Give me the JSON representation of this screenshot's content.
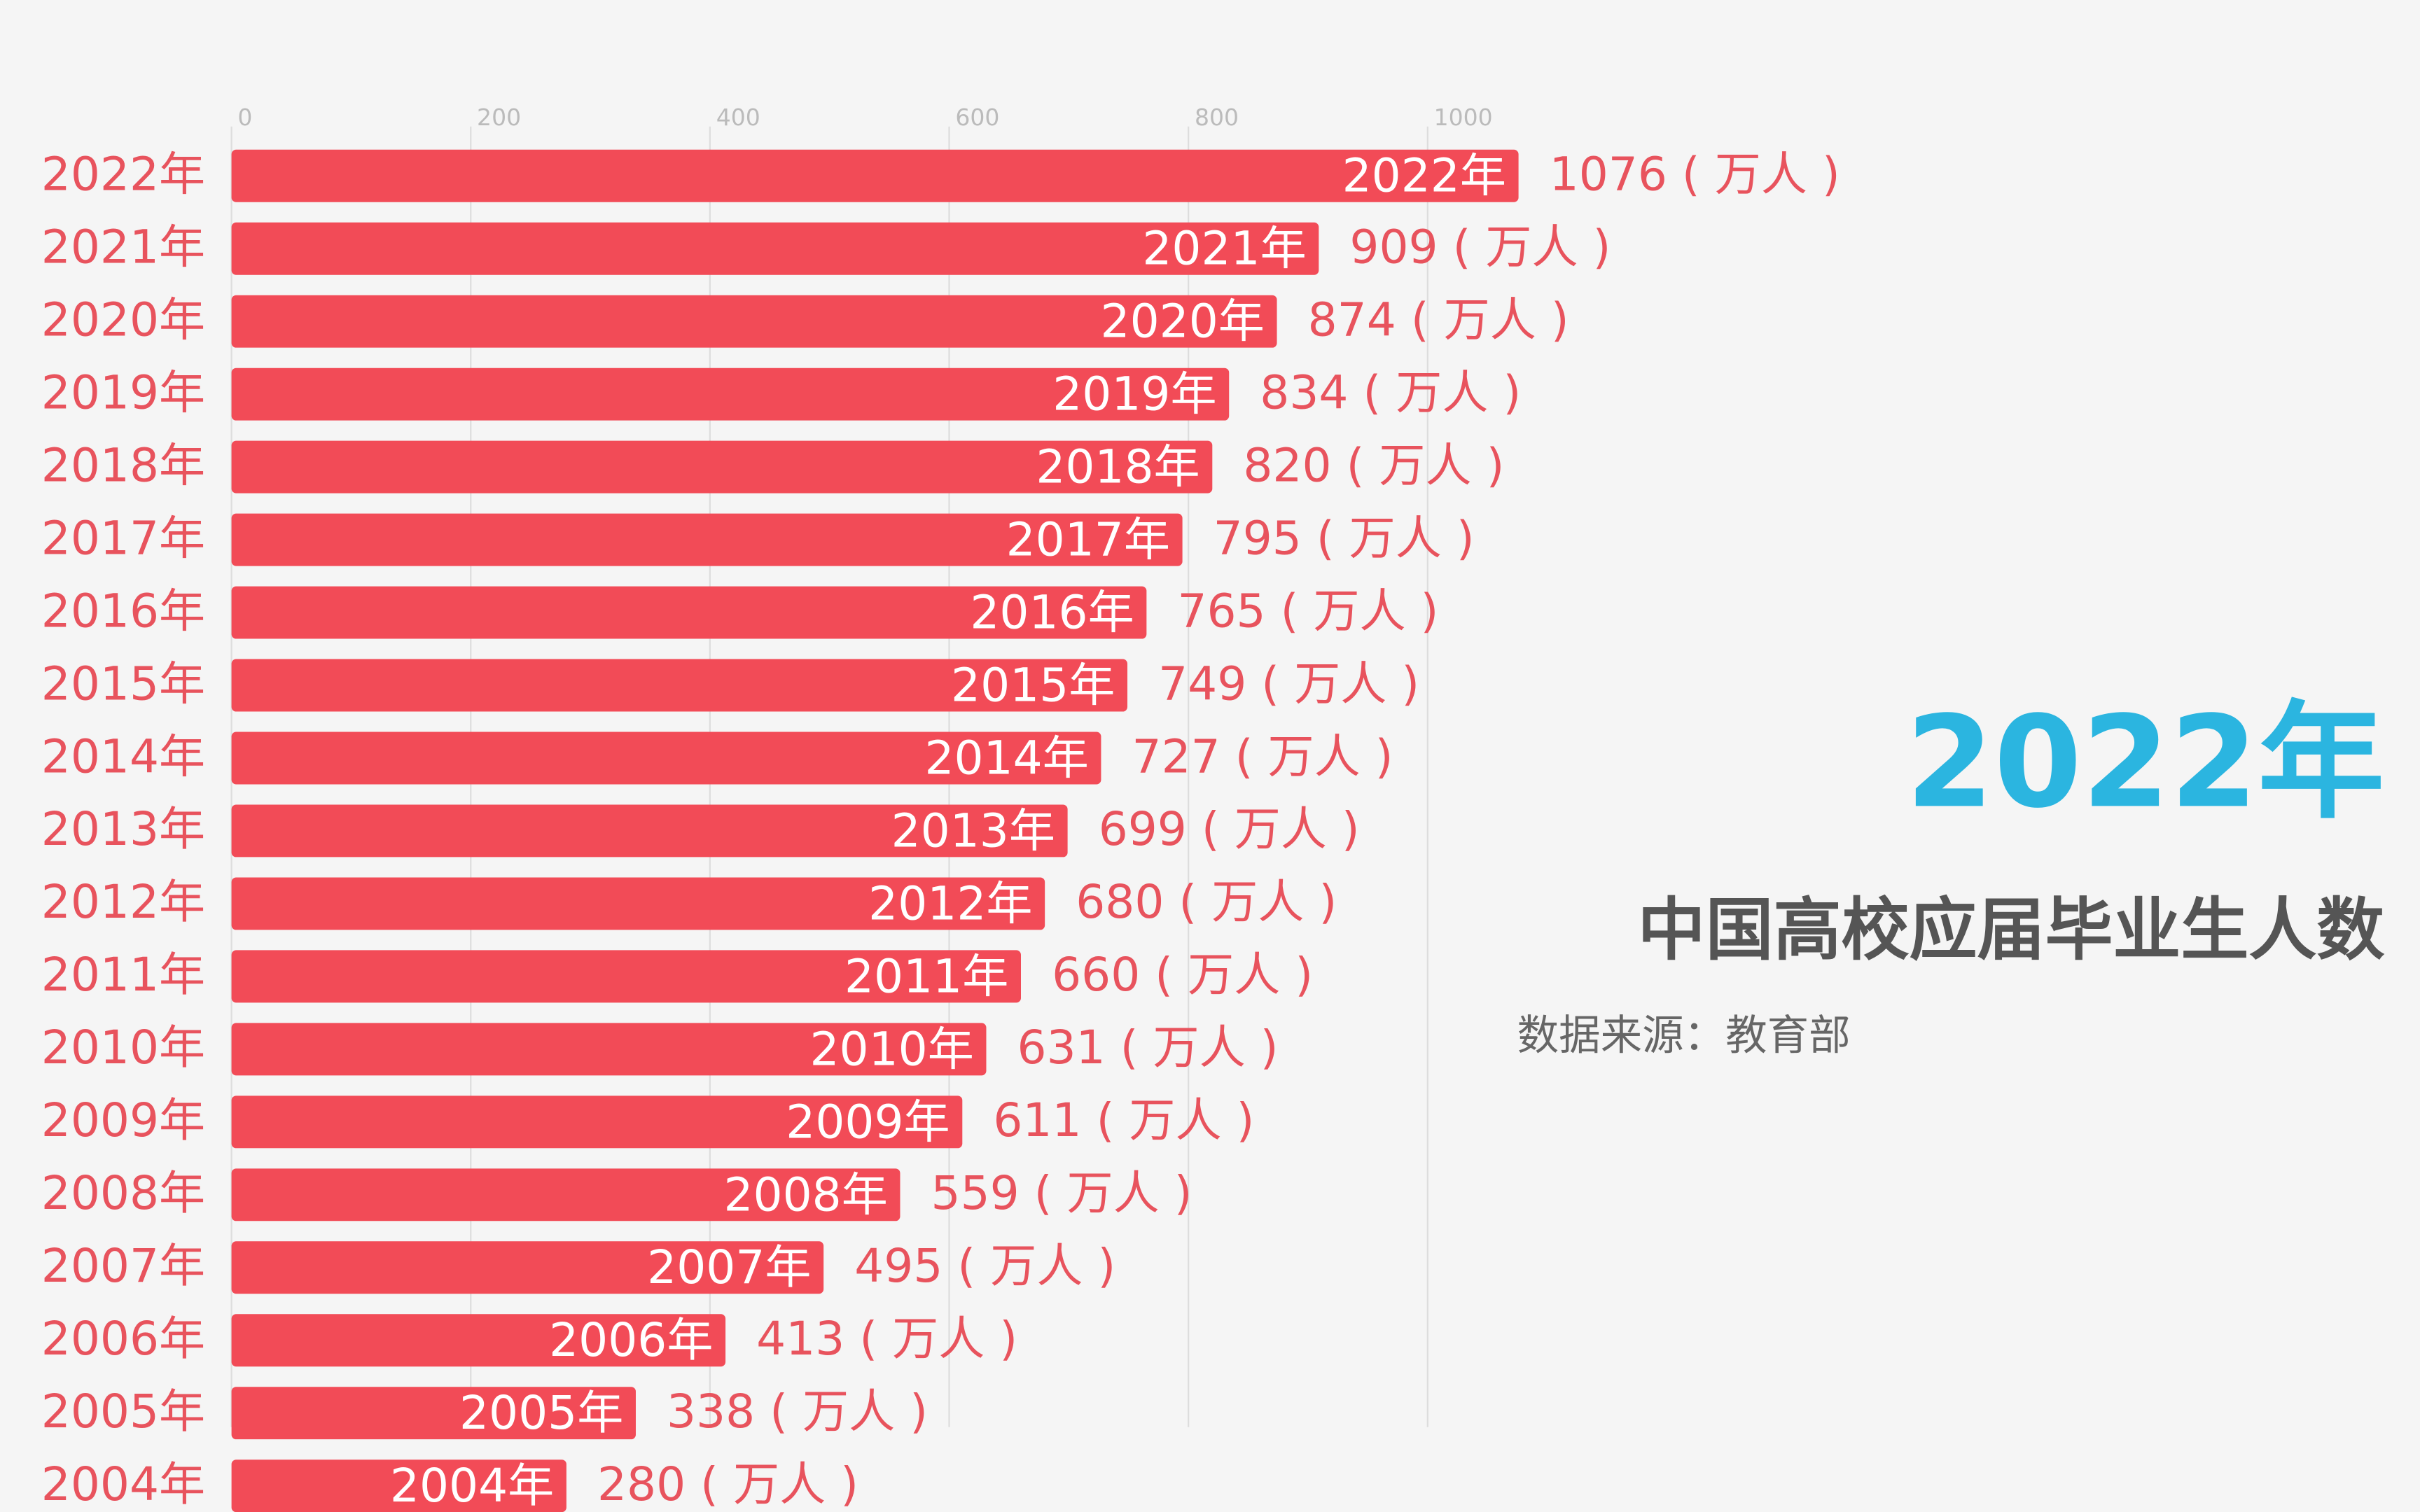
{
  "chart_data": {
    "type": "bar",
    "orientation": "horizontal",
    "title": "中国高校应届毕业生人数",
    "subtitle": "数据来源：教育部",
    "annotation": "2022年",
    "categories": [
      "2022年",
      "2021年",
      "2020年",
      "2019年",
      "2018年",
      "2017年",
      "2016年",
      "2015年",
      "2014年",
      "2013年",
      "2012年",
      "2011年",
      "2010年",
      "2009年",
      "2008年",
      "2007年",
      "2006年",
      "2005年",
      "2004年"
    ],
    "values": [
      1076,
      909,
      874,
      834,
      820,
      795,
      765,
      749,
      727,
      699,
      680,
      660,
      631,
      611,
      559,
      495,
      413,
      338,
      280
    ],
    "value_labels": [
      "1076 ( 万人 )",
      "909 ( 万人 )",
      "874 ( 万人 )",
      "834 ( 万人 )",
      "820 ( 万人 )",
      "795 ( 万人 )",
      "765 ( 万人 )",
      "749 ( 万人 )",
      "727 ( 万人 )",
      "699 ( 万人 )",
      "680 ( 万人 )",
      "660 ( 万人 )",
      "631 ( 万人 )",
      "611 ( 万人 )",
      "559 ( 万人 )",
      "495 ( 万人 )",
      "413 ( 万人 )",
      "338 ( 万人 )",
      "280 ( 万人 )"
    ],
    "color": "#f24b57",
    "xlim": [
      0,
      1000
    ],
    "xticks": [
      0,
      200,
      400,
      600,
      800,
      1000
    ],
    "grid": true
  }
}
